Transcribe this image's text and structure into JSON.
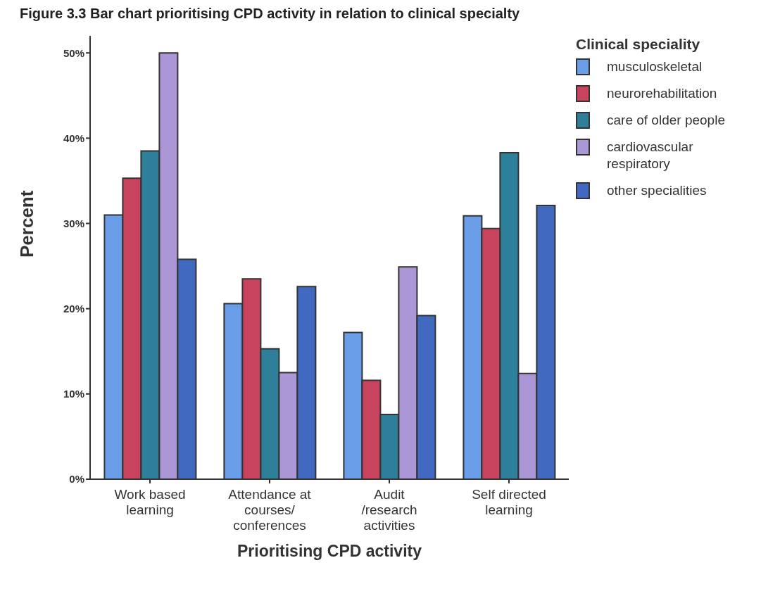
{
  "chart_data": {
    "type": "bar",
    "title": "Figure 3.3 Bar chart prioritising CPD activity in relation to clinical specialty",
    "xlabel": "Prioritising CPD activity",
    "ylabel": "Percent",
    "legend_title": "Clinical speciality",
    "categories": [
      "Work based learning",
      "Attendance at courses/ conferences",
      "Audit /research activities",
      "Self directed learning"
    ],
    "series": [
      {
        "name": "musculoskeletal",
        "color": "#6a9ee8",
        "values": [
          31.0,
          20.6,
          17.2,
          30.9
        ]
      },
      {
        "name": "neurorehabilitation",
        "color": "#c8445e",
        "values": [
          35.3,
          23.5,
          11.6,
          29.4
        ]
      },
      {
        "name": "care of older people",
        "color": "#2e7f9a",
        "values": [
          38.5,
          15.3,
          7.6,
          38.3
        ]
      },
      {
        "name": "cardiovascular respiratory",
        "color": "#ab97d6",
        "values": [
          50.0,
          12.5,
          24.9,
          12.4
        ]
      },
      {
        "name": "other specialities",
        "color": "#4169c0",
        "values": [
          25.8,
          22.6,
          19.2,
          32.1
        ]
      }
    ],
    "ylim": [
      0,
      52
    ],
    "yticks": [
      {
        "value": 0,
        "label": "0%"
      },
      {
        "value": 10,
        "label": "10%"
      },
      {
        "value": 20,
        "label": "20%"
      },
      {
        "value": 30,
        "label": "30%"
      },
      {
        "value": 40,
        "label": "40%"
      },
      {
        "value": 50,
        "label": "50%"
      }
    ],
    "grid": false,
    "legend": "right"
  }
}
